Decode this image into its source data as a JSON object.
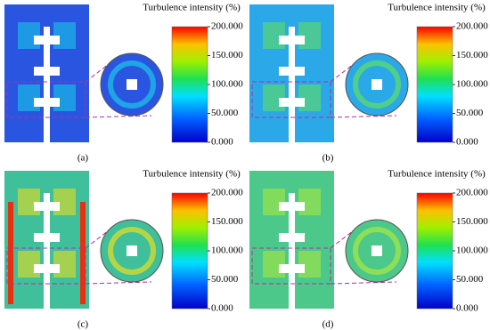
{
  "panels": [
    {
      "label": "(a)",
      "colorbar": {
        "title": "Turbulence intensity (%)",
        "lim": [
          0,
          200
        ],
        "ticks": [
          {
            "value": 0,
            "label": "0.000"
          },
          {
            "value": 50,
            "label": "50.000"
          },
          {
            "value": 100,
            "label": "100.000"
          },
          {
            "value": 150,
            "label": "150.000"
          },
          {
            "value": 200,
            "label": "200.000"
          }
        ]
      }
    },
    {
      "label": "(b)",
      "colorbar": {
        "title": "Turbulence intensity (%)",
        "lim": [
          0,
          200
        ],
        "ticks": [
          {
            "value": 0,
            "label": "0.000"
          },
          {
            "value": 50,
            "label": "50.000"
          },
          {
            "value": 100,
            "label": "100.000"
          },
          {
            "value": 150,
            "label": "150.000"
          },
          {
            "value": 200,
            "label": "200.000"
          }
        ]
      }
    },
    {
      "label": "(c)",
      "colorbar": {
        "title": "Turbulence intensity (%)",
        "lim": [
          0,
          200
        ],
        "ticks": [
          {
            "value": 0,
            "label": "0.000"
          },
          {
            "value": 50,
            "label": "50.000"
          },
          {
            "value": 100,
            "label": "100.000"
          },
          {
            "value": 150,
            "label": "150.000"
          },
          {
            "value": 200,
            "label": "200.000"
          }
        ]
      }
    },
    {
      "label": "(d)",
      "colorbar": {
        "title": "Turbulence intensity (%)",
        "lim": [
          0,
          200
        ],
        "ticks": [
          {
            "value": 0,
            "label": "0.000"
          },
          {
            "value": 50,
            "label": "50.000"
          },
          {
            "value": 100,
            "label": "100.000"
          },
          {
            "value": 150,
            "label": "150.000"
          },
          {
            "value": 200,
            "label": "200.000"
          }
        ]
      }
    }
  ]
}
